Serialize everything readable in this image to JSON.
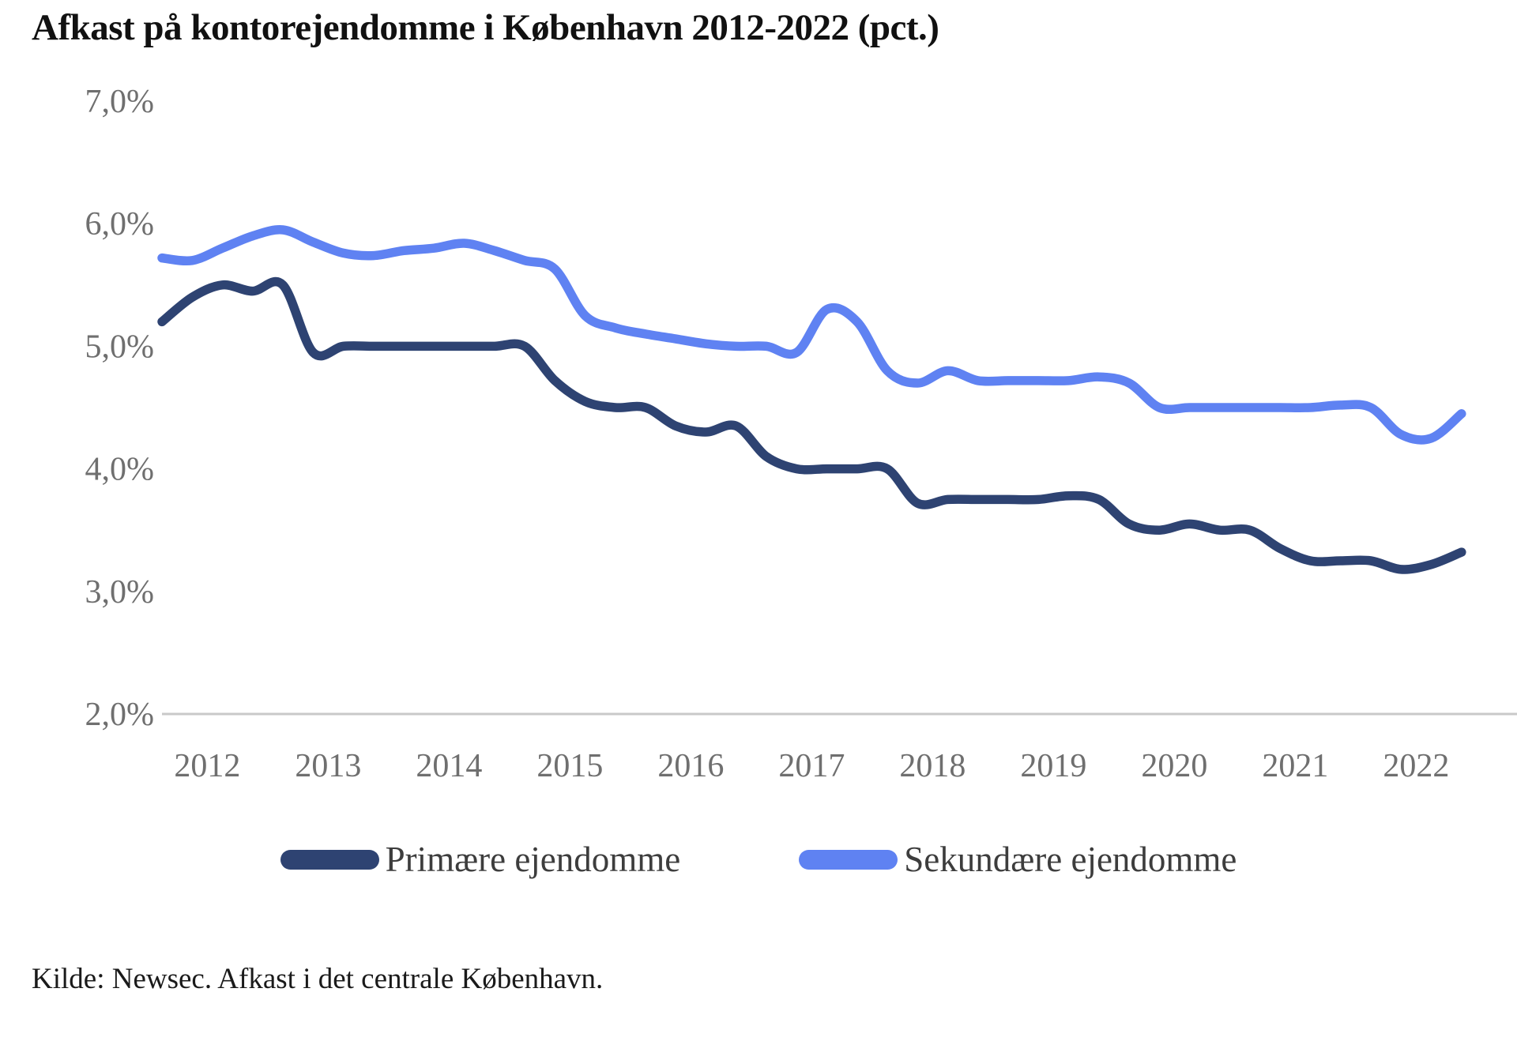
{
  "title": "Afkast på kontorejendomme i København 2012-2022 (pct.)",
  "source_note": "Kilde: Newsec. Afkast i det centrale København.",
  "colors": {
    "primary_series": "#2e4372",
    "secondary_series": "#5f82f2",
    "axis_line": "#c9c9c9",
    "tick_text": "#6f6f6f",
    "legend_text": "#3d3d3d",
    "title_text": "#111111",
    "background": "#ffffff"
  },
  "legend": {
    "items": [
      {
        "label": "Primære ejendomme",
        "color": "#2e4372"
      },
      {
        "label": "Sekundære ejendomme",
        "color": "#5f82f2"
      }
    ],
    "position": "bottom"
  },
  "chart_data": {
    "type": "line",
    "title": "Afkast på kontorejendomme i København 2012-2022 (pct.)",
    "xlabel": "",
    "ylabel": "",
    "ylim": [
      2.0,
      7.0
    ],
    "grid": false,
    "smoothed_lines": true,
    "legend_position": "bottom",
    "y_ticks": [
      {
        "value": 7.0,
        "label": "7,0%"
      },
      {
        "value": 6.0,
        "label": "6,0%"
      },
      {
        "value": 5.0,
        "label": "5,0%"
      },
      {
        "value": 4.0,
        "label": "4,0%"
      },
      {
        "value": 3.0,
        "label": "3,0%"
      },
      {
        "value": 2.0,
        "label": "2,0%"
      }
    ],
    "x_ticks": [
      "2012",
      "2013",
      "2014",
      "2015",
      "2016",
      "2017",
      "2018",
      "2019",
      "2020",
      "2021",
      "2022"
    ],
    "x": [
      "2012K1",
      "2012K2",
      "2012K3",
      "2012K4",
      "2013K1",
      "2013K2",
      "2013K3",
      "2013K4",
      "2014K1",
      "2014K2",
      "2014K3",
      "2014K4",
      "2015K1",
      "2015K2",
      "2015K3",
      "2015K4",
      "2016K1",
      "2016K2",
      "2016K3",
      "2016K4",
      "2017K1",
      "2017K2",
      "2017K3",
      "2017K4",
      "2018K1",
      "2018K2",
      "2018K3",
      "2018K4",
      "2019K1",
      "2019K2",
      "2019K3",
      "2019K4",
      "2020K1",
      "2020K2",
      "2020K3",
      "2020K4",
      "2021K1",
      "2021K2",
      "2021K3",
      "2021K4",
      "2022K1",
      "2022K2",
      "2022K3",
      "2022K4"
    ],
    "series": [
      {
        "name": "Primære ejendomme",
        "color": "#2e4372",
        "values": [
          5.2,
          5.4,
          5.5,
          5.45,
          5.5,
          4.95,
          5.0,
          5.0,
          5.0,
          5.0,
          5.0,
          5.0,
          5.0,
          4.72,
          4.55,
          4.5,
          4.5,
          4.35,
          4.3,
          4.35,
          4.1,
          4.0,
          4.0,
          4.0,
          4.0,
          3.72,
          3.75,
          3.75,
          3.75,
          3.75,
          3.78,
          3.75,
          3.55,
          3.5,
          3.55,
          3.5,
          3.5,
          3.35,
          3.25,
          3.25,
          3.25,
          3.18,
          3.22,
          3.32
        ]
      },
      {
        "name": "Sekundære ejendomme",
        "color": "#5f82f2",
        "values": [
          5.72,
          5.7,
          5.8,
          5.9,
          5.95,
          5.85,
          5.76,
          5.74,
          5.78,
          5.8,
          5.84,
          5.78,
          5.7,
          5.63,
          5.25,
          5.15,
          5.1,
          5.06,
          5.02,
          5.0,
          5.0,
          4.95,
          5.3,
          5.2,
          4.8,
          4.7,
          4.8,
          4.72,
          4.72,
          4.72,
          4.72,
          4.75,
          4.7,
          4.5,
          4.5,
          4.5,
          4.5,
          4.5,
          4.5,
          4.52,
          4.5,
          4.28,
          4.25,
          4.45
        ]
      }
    ]
  }
}
